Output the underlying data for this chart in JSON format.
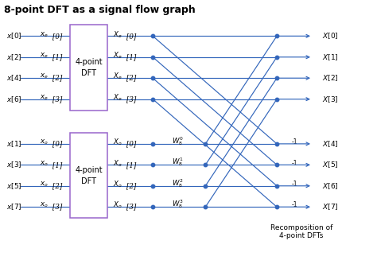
{
  "title": "8-point DFT as a signal flow graph",
  "title_fontsize": 9,
  "bg_color": "#ffffff",
  "line_color": "#3366bb",
  "box_color": "#9966cc",
  "text_color": "#000000",
  "figsize": [
    4.74,
    3.32
  ],
  "dpi": 100,
  "inputs_even": [
    "x[0]",
    "x[2]",
    "x[4]",
    "x[6]"
  ],
  "inputs_odd": [
    "x[1]",
    "x[3]",
    "x[5]",
    "x[7]"
  ],
  "xe_in_labels": [
    "x_e[0]",
    "x_e[1]",
    "x_e[2]",
    "x_e[3]"
  ],
  "xo_in_labels": [
    "x_o[0]",
    "x_o[1]",
    "x_o[2]",
    "x_o[3]"
  ],
  "xe_out_labels": [
    "X_e[0]",
    "X_e[1]",
    "X_e[2]",
    "X_e[3]"
  ],
  "xo_out_labels": [
    "X_o[0]",
    "X_o[1]",
    "X_o[2]",
    "X_o[3]"
  ],
  "twiddle_exponents": [
    "0",
    "1",
    "2",
    "3"
  ],
  "final_outputs": [
    "X[0]",
    "X[1]",
    "X[2]",
    "X[3]",
    "X[4]",
    "X[5]",
    "X[6]",
    "X[7]"
  ],
  "recomp_text": "Recomposition of\n4-point DFTs"
}
